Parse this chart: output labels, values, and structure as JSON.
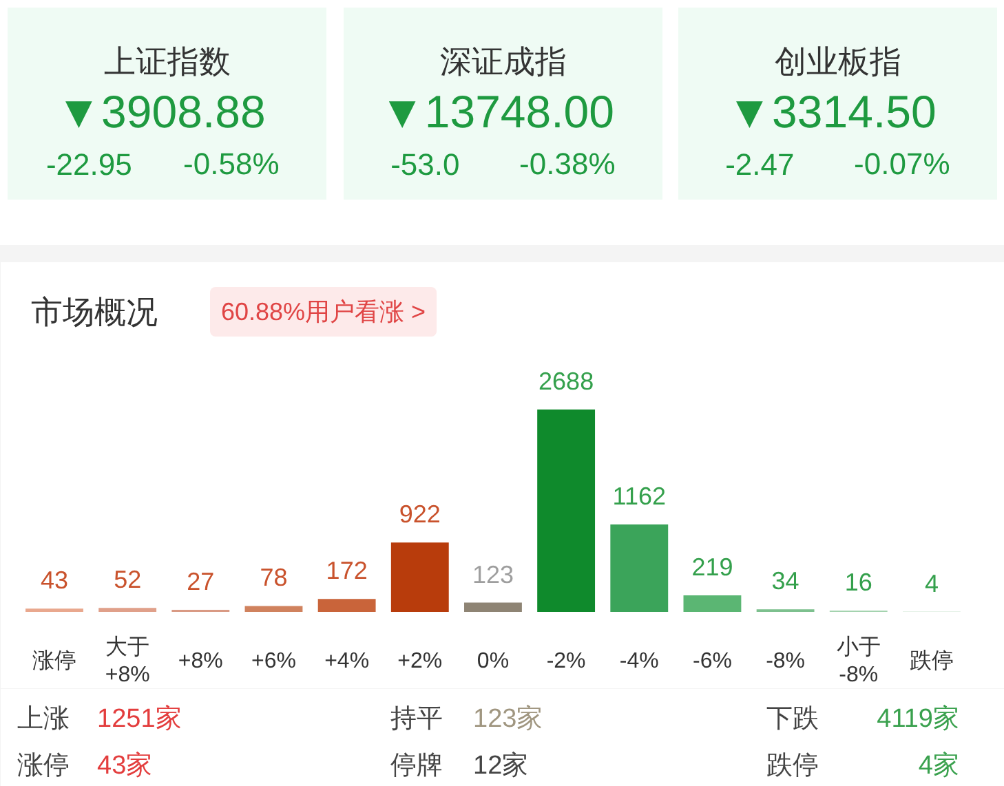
{
  "chart_data": [
    {
      "type": "other",
      "title": "上证指数",
      "annotations": [
        "▼3908.88",
        "-22.95",
        "-0.58%"
      ],
      "color": "#1e9a40"
    },
    {
      "type": "other",
      "title": "深证成指",
      "annotations": [
        "▼13748.00",
        "-53.0",
        "-0.38%"
      ],
      "color": "#1e9a40"
    },
    {
      "type": "other",
      "title": "创业板指",
      "annotations": [
        "▼3314.50",
        "-2.47",
        "-0.07%"
      ],
      "color": "#1e9a40"
    },
    {
      "type": "bar",
      "title": "市场概况",
      "subtitle": "60.88%用户看涨 >",
      "categories": [
        "涨停",
        "大于\n+8%",
        "+8%",
        "+6%",
        "+4%",
        "+2%",
        "0%",
        "-2%",
        "-4%",
        "-6%",
        "-8%",
        "小于\n-8%",
        "跌停"
      ],
      "series": [
        {
          "color": "#c9522c",
          "values": [
            43,
            52,
            27,
            78,
            172,
            922,
            null,
            null,
            null,
            null,
            null,
            null,
            null
          ],
          "colors": [
            "#e9a88e",
            "#e0a08a",
            "#d99a84",
            "#d0825e",
            "#c9643a",
            "#b83c0c",
            null,
            null,
            null,
            null,
            null,
            null,
            null
          ]
        },
        {
          "color": "#9e9e9e",
          "values": [
            null,
            null,
            null,
            null,
            null,
            null,
            123,
            null,
            null,
            null,
            null,
            null,
            null
          ],
          "colors": [
            null,
            null,
            null,
            null,
            null,
            null,
            "#8e8474",
            null,
            null,
            null,
            null,
            null,
            null
          ]
        },
        {
          "color": "#34a04c",
          "values": [
            null,
            null,
            null,
            null,
            null,
            null,
            null,
            2688,
            1162,
            219,
            34,
            16,
            4
          ],
          "colors": [
            null,
            null,
            null,
            null,
            null,
            null,
            null,
            "#0f8a2c",
            "#3ba45a",
            "#5bb673",
            "#7dc08e",
            "#a3d3ae",
            "#cfe8d4"
          ]
        }
      ],
      "data_labels": true,
      "grid": false
    },
    {
      "type": "other",
      "categories": [
        "上涨",
        "持平",
        "下跌",
        "涨停",
        "停牌",
        "跌停"
      ],
      "value_labels": [
        "1251家",
        "123家",
        "4119家",
        "43家",
        "12家",
        "4家"
      ]
    }
  ]
}
